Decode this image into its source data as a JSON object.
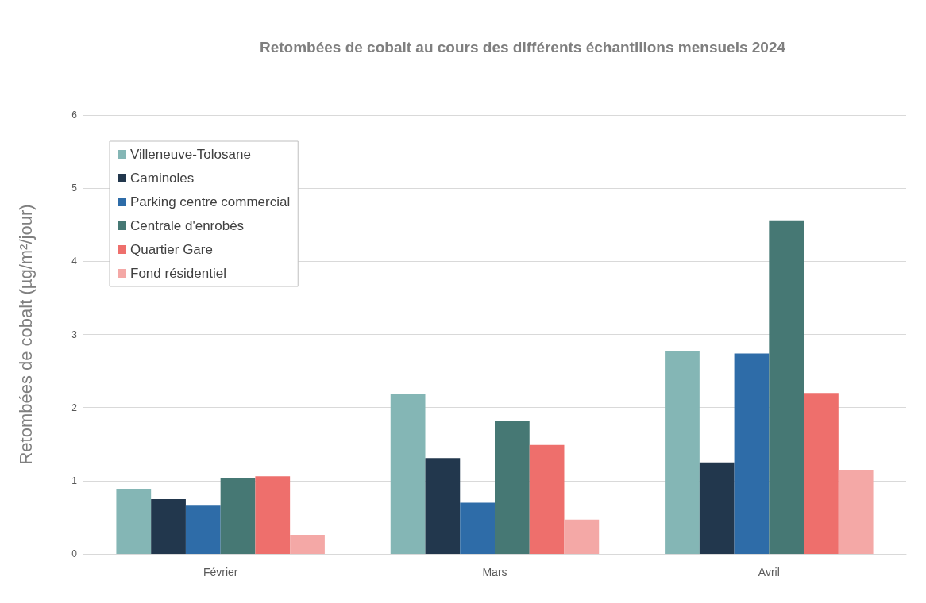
{
  "chart_data": {
    "type": "bar",
    "title": "Retombées de cobalt au cours des différents échantillons mensuels 2024",
    "ylabel": "Retombées de cobalt (µg/m²/jour)",
    "categories": [
      "Février",
      "Mars",
      "Avril"
    ],
    "series": [
      {
        "name": "Villeneuve-Tolosane",
        "color": "#84b6b5",
        "values": [
          0.89,
          2.19,
          2.77
        ]
      },
      {
        "name": "Caminoles",
        "color": "#22374d",
        "values": [
          0.75,
          1.31,
          1.25
        ]
      },
      {
        "name": "Parking centre commercial",
        "color": "#2e6ca8",
        "values": [
          0.66,
          0.7,
          2.74
        ]
      },
      {
        "name": "Centrale d'enrobés",
        "color": "#467874",
        "values": [
          1.04,
          1.82,
          4.56
        ]
      },
      {
        "name": "Quartier Gare",
        "color": "#ee6f6c",
        "values": [
          1.06,
          1.49,
          2.2
        ]
      },
      {
        "name": "Fond résidentiel",
        "color": "#f4a8a6",
        "values": [
          0.26,
          0.47,
          1.15
        ]
      }
    ],
    "ylim": [
      0,
      6
    ],
    "yticks": [
      0,
      1,
      2,
      3,
      4,
      5,
      6
    ],
    "grid": "y",
    "legend": "top left"
  }
}
